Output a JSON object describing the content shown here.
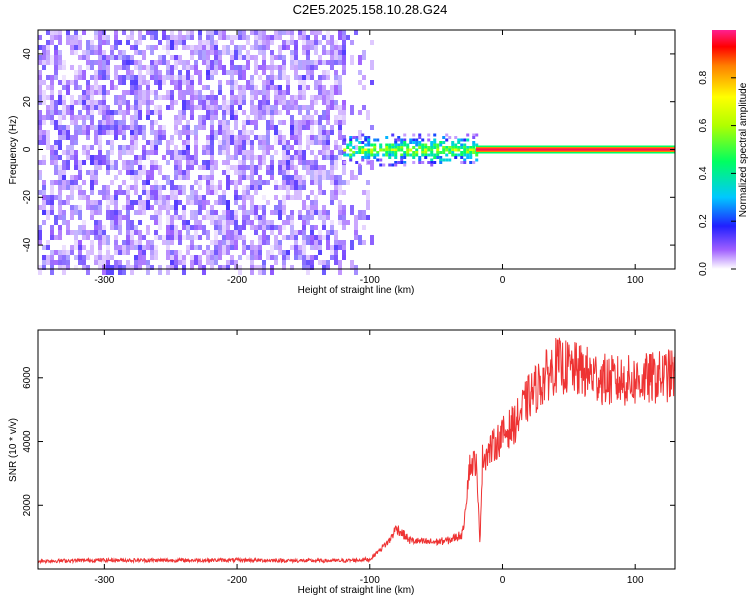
{
  "title": "C2E5.2025.158.10.28.G24",
  "chart_data": [
    {
      "type": "heatmap",
      "xlabel": "Height of straight line (km)",
      "ylabel": "Frequency (Hz)",
      "xlim": [
        -350,
        130
      ],
      "ylim": [
        -50,
        50
      ],
      "xticks": [
        -300,
        -200,
        -100,
        0,
        100
      ],
      "yticks": [
        -40,
        -20,
        0,
        20,
        40
      ],
      "colorbar": {
        "label": "Normalized spectral amplitude",
        "range": [
          0,
          1
        ],
        "ticks": [
          "0.0",
          "0.2",
          "0.4",
          "0.6",
          "0.8"
        ]
      },
      "regions": [
        {
          "x_range": [
            -350,
            -120
          ],
          "amplitude": 0.05
        },
        {
          "x_range": [
            -120,
            -20
          ],
          "amplitude": 0.3
        },
        {
          "x_range": [
            -20,
            130
          ],
          "amplitude": 1.0
        }
      ]
    },
    {
      "type": "line",
      "xlabel": "Height of straight line (km)",
      "ylabel": "SNR (10 * v/v)",
      "xlim": [
        -350,
        130
      ],
      "ylim": [
        0,
        7500
      ],
      "xticks": [
        -300,
        -200,
        -100,
        0,
        100
      ],
      "yticks": [
        2000,
        4000,
        6000
      ],
      "color": "#ee3333",
      "x": [
        -350,
        -300,
        -250,
        -200,
        -150,
        -120,
        -100,
        -85,
        -80,
        -70,
        -60,
        -50,
        -40,
        -30,
        -25,
        -20,
        -17,
        -15,
        -10,
        0,
        10,
        20,
        30,
        40,
        60,
        80,
        100,
        130
      ],
      "y": [
        250,
        280,
        270,
        280,
        260,
        260,
        300,
        900,
        1300,
        900,
        850,
        850,
        900,
        1100,
        3200,
        3400,
        900,
        3500,
        3700,
        4200,
        4600,
        5400,
        5900,
        6400,
        6200,
        5900,
        5900,
        6100
      ]
    }
  ]
}
